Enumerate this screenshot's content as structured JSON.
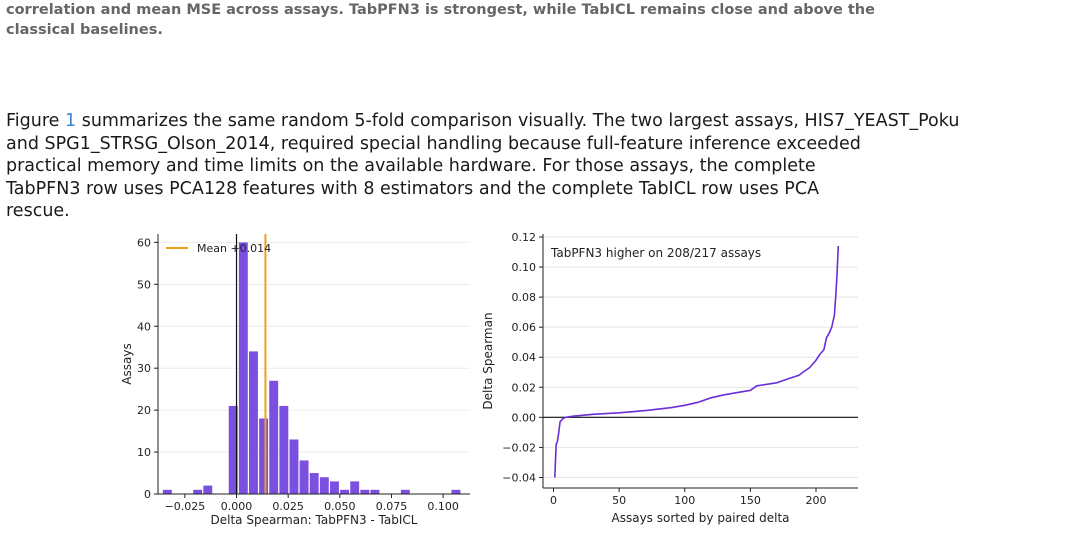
{
  "caption": {
    "line1": "correlation and mean MSE across assays. TabPFN3 is strongest, while TabICL remains close and above the",
    "line2": "classical baselines."
  },
  "paragraph": {
    "before_ref": "Figure ",
    "ref": "1",
    "line1_after": " summarizes the same random 5-fold comparison visually. The two largest assays, HIS7_YEAST_Poku",
    "line2": "and SPG1_STRSG_Olson_2014, required special handling because full-feature inference exceeded",
    "line3": "practical memory and time limits on the available hardware.  For those assays, the complete",
    "line4": "TabPFN3 row uses PCA128 features with 8 estimators and the complete TabICL row uses PCA",
    "line5": "rescue."
  },
  "chart_data": [
    {
      "type": "bar",
      "xlabel": "Delta Spearman: TabPFN3 - TabICL",
      "ylabel": "Assays",
      "xlim": [
        -0.038,
        0.113
      ],
      "ylim": [
        0,
        62
      ],
      "x_ticks": [
        -0.025,
        0.0,
        0.025,
        0.05,
        0.075,
        0.1
      ],
      "x_tick_labels": [
        "−0.025",
        "0.000",
        "0.025",
        "0.050",
        "0.075",
        "0.100"
      ],
      "y_ticks": [
        0,
        10,
        20,
        30,
        40,
        50,
        60
      ],
      "bin_width": 0.0049,
      "bins": [
        {
          "x": -0.0335,
          "count": 1
        },
        {
          "x": -0.0188,
          "count": 1
        },
        {
          "x": -0.0139,
          "count": 2
        },
        {
          "x": -0.0016,
          "count": 21
        },
        {
          "x": 0.0033,
          "count": 60
        },
        {
          "x": 0.0082,
          "count": 34
        },
        {
          "x": 0.0131,
          "count": 18
        },
        {
          "x": 0.018,
          "count": 27
        },
        {
          "x": 0.0229,
          "count": 21
        },
        {
          "x": 0.0278,
          "count": 13
        },
        {
          "x": 0.0327,
          "count": 8
        },
        {
          "x": 0.0376,
          "count": 5
        },
        {
          "x": 0.0425,
          "count": 4
        },
        {
          "x": 0.0474,
          "count": 3
        },
        {
          "x": 0.0523,
          "count": 1
        },
        {
          "x": 0.0572,
          "count": 3
        },
        {
          "x": 0.0621,
          "count": 1
        },
        {
          "x": 0.067,
          "count": 1
        },
        {
          "x": 0.0817,
          "count": 1
        },
        {
          "x": 0.1062,
          "count": 1
        }
      ],
      "mean": 0.014,
      "legend_label": "Mean +0.014",
      "legend_position": "top-left",
      "zero_line": 0,
      "colors": {
        "bar": "#7b4fe0",
        "mean": "#f0a020",
        "zero": "#111111"
      }
    },
    {
      "type": "line",
      "xlabel": "Assays sorted by paired delta",
      "ylabel": "Delta Spearman",
      "xlim": [
        -8,
        232
      ],
      "ylim": [
        -0.047,
        0.122
      ],
      "x_ticks": [
        0,
        50,
        100,
        150,
        200
      ],
      "y_ticks": [
        -0.04,
        -0.02,
        0.0,
        0.02,
        0.04,
        0.06,
        0.08,
        0.1,
        0.12
      ],
      "y_tick_labels": [
        "−0.04",
        "−0.02",
        "0.00",
        "0.02",
        "0.04",
        "0.06",
        "0.08",
        "0.10",
        "0.12"
      ],
      "annotation": "TabPFN3 higher on 208/217 assays",
      "zero_line": 0,
      "points": [
        [
          1,
          -0.04
        ],
        [
          2,
          -0.018
        ],
        [
          3,
          -0.016
        ],
        [
          4,
          -0.01
        ],
        [
          5,
          -0.003
        ],
        [
          7,
          -0.001
        ],
        [
          9,
          0.0
        ],
        [
          15,
          0.0008
        ],
        [
          30,
          0.002
        ],
        [
          50,
          0.003
        ],
        [
          70,
          0.0045
        ],
        [
          90,
          0.0065
        ],
        [
          100,
          0.008
        ],
        [
          110,
          0.01
        ],
        [
          120,
          0.013
        ],
        [
          130,
          0.015
        ],
        [
          140,
          0.0165
        ],
        [
          150,
          0.018
        ],
        [
          155,
          0.021
        ],
        [
          170,
          0.023
        ],
        [
          180,
          0.026
        ],
        [
          187,
          0.028
        ],
        [
          190,
          0.03
        ],
        [
          195,
          0.033
        ],
        [
          200,
          0.038
        ],
        [
          203,
          0.042
        ],
        [
          206,
          0.045
        ],
        [
          208,
          0.053
        ],
        [
          210,
          0.056
        ],
        [
          212,
          0.06
        ],
        [
          214,
          0.068
        ],
        [
          215,
          0.08
        ],
        [
          216,
          0.095
        ],
        [
          217,
          0.114
        ]
      ],
      "colors": {
        "line": "#6a2fd6",
        "zero": "#111111",
        "grid": "#e6e6e6"
      }
    }
  ]
}
